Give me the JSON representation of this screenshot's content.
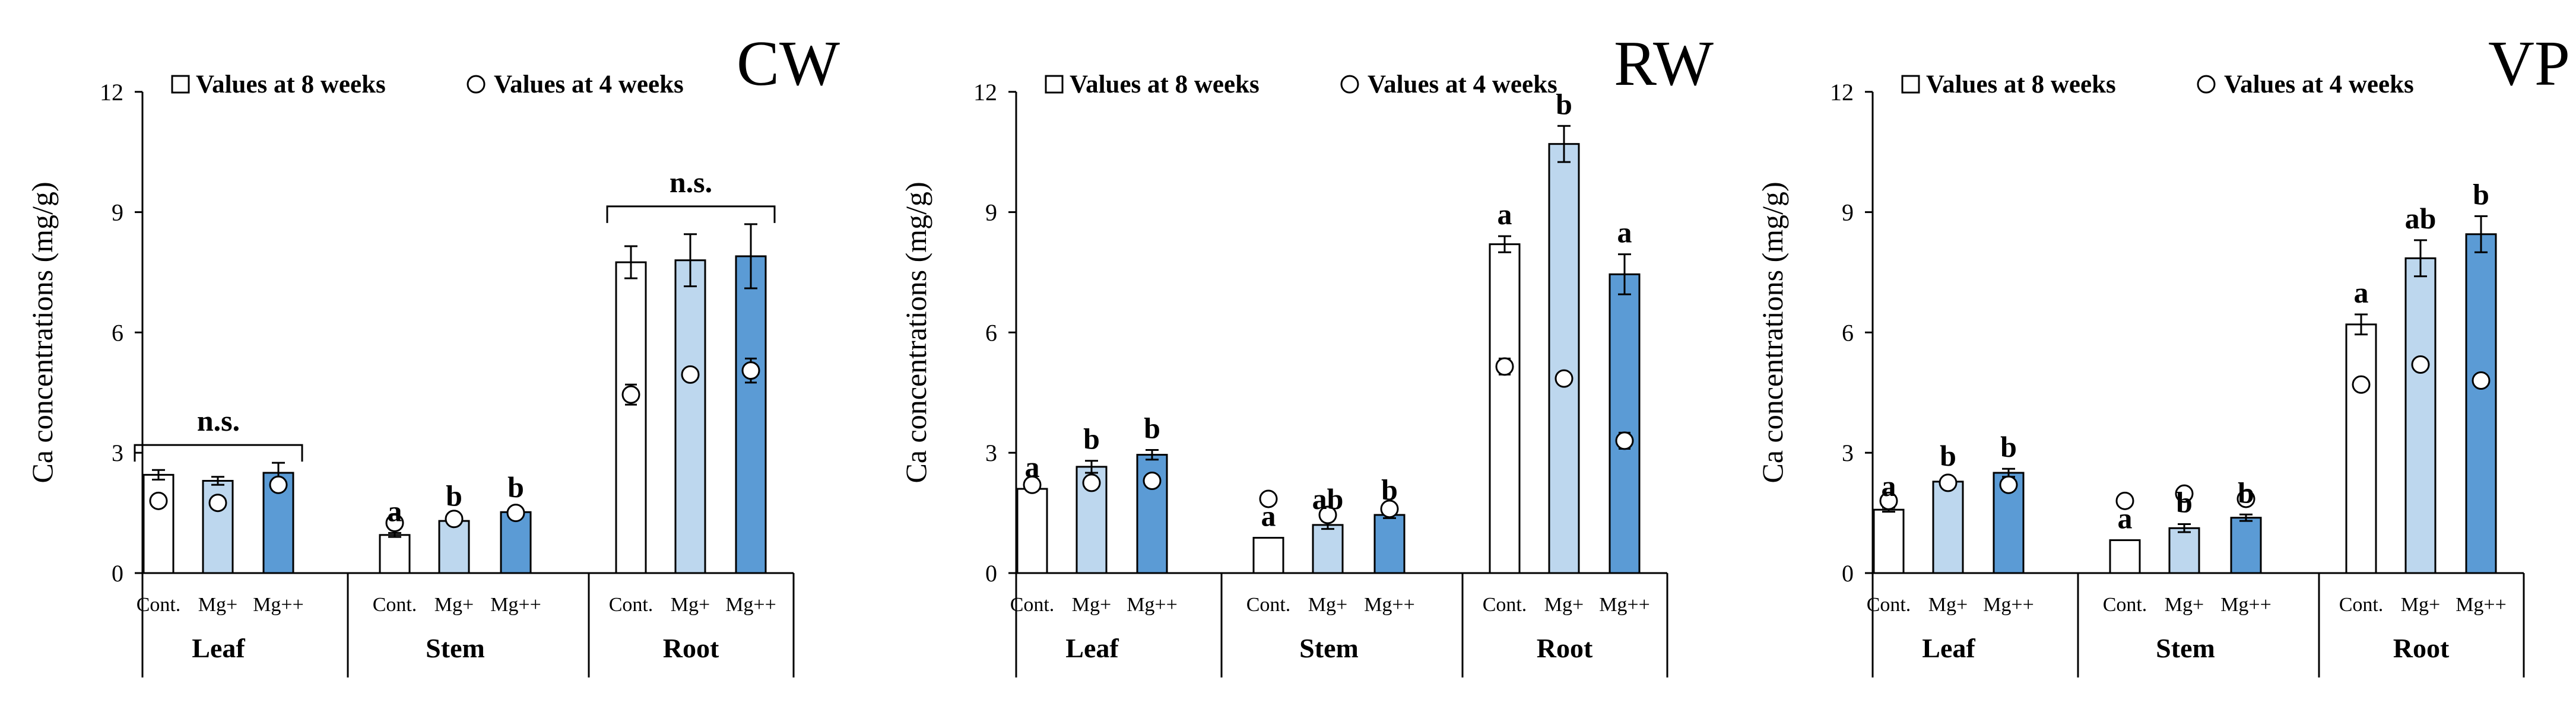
{
  "chart_data": [
    {
      "type": "bar",
      "panel_title": "CW",
      "ylabel": "Ca concentrations (mg/g)",
      "ylim": [
        0,
        12
      ],
      "yticks": [
        "0",
        "3",
        "6",
        "9",
        "12"
      ],
      "legend": {
        "bar": "Values at 8 weeks",
        "point": "Values at 4 weeks"
      },
      "treatments": [
        "Cont.",
        "Mg+",
        "Mg++"
      ],
      "groups": [
        {
          "name": "Leaf",
          "bars": [
            2.45,
            2.3,
            2.5
          ],
          "errors": [
            0.12,
            0.1,
            0.25
          ],
          "points": [
            1.8,
            1.75,
            2.2
          ],
          "point_errors": [
            0,
            0,
            0.15
          ],
          "letters": [],
          "bracket": "n.s."
        },
        {
          "name": "Stem",
          "bars": [
            0.95,
            1.3,
            1.52
          ],
          "errors": [
            0.05,
            0.08,
            0.08
          ],
          "points": [
            1.25,
            1.35,
            1.5
          ],
          "point_errors": [
            0,
            0.15,
            0.12
          ],
          "letters": [
            "a",
            "b",
            "b"
          ],
          "bracket": ""
        },
        {
          "name": "Root",
          "bars": [
            7.75,
            7.8,
            7.9
          ],
          "errors": [
            0.4,
            0.65,
            0.8
          ],
          "points": [
            4.45,
            4.95,
            5.05
          ],
          "point_errors": [
            0.25,
            0,
            0.3
          ],
          "letters": [],
          "bracket": "n.s."
        }
      ]
    },
    {
      "type": "bar",
      "panel_title": "RW",
      "ylabel": "Ca concentrations (mg/g)",
      "ylim": [
        0,
        12
      ],
      "yticks": [
        "0",
        "3",
        "6",
        "9",
        "12"
      ],
      "legend": {
        "bar": "Values at 8 weeks",
        "point": "Values at 4 weeks"
      },
      "treatments": [
        "Cont.",
        "Mg+",
        "Mg++"
      ],
      "groups": [
        {
          "name": "Leaf",
          "bars": [
            2.1,
            2.65,
            2.95
          ],
          "errors": [
            0,
            0.15,
            0.12
          ],
          "points": [
            2.2,
            2.25,
            2.3
          ],
          "point_errors": [
            0,
            0,
            0
          ],
          "letters": [
            "a",
            "b",
            "b"
          ],
          "bracket": ""
        },
        {
          "name": "Stem",
          "bars": [
            0.88,
            1.2,
            1.45
          ],
          "errors": [
            0,
            0.1,
            0.08
          ],
          "points": [
            1.85,
            1.45,
            1.6
          ],
          "point_errors": [
            0,
            0,
            0
          ],
          "letters": [
            "a",
            "ab",
            "b"
          ],
          "bracket": ""
        },
        {
          "name": "Root",
          "bars": [
            8.2,
            10.7,
            7.45
          ],
          "errors": [
            0.2,
            0.45,
            0.5
          ],
          "points": [
            5.15,
            4.85,
            3.3
          ],
          "point_errors": [
            0.2,
            0,
            0.2
          ],
          "letters": [
            "a",
            "b",
            "a"
          ],
          "bracket": ""
        }
      ]
    },
    {
      "type": "bar",
      "panel_title": "VP",
      "ylabel": "Ca concentrations (mg/g)",
      "ylim": [
        0,
        12
      ],
      "yticks": [
        "0",
        "3",
        "6",
        "9",
        "12"
      ],
      "legend": {
        "bar": "Values at 8 weeks",
        "point": "Values at 4 weeks"
      },
      "treatments": [
        "Cont.",
        "Mg+",
        "Mg++"
      ],
      "groups": [
        {
          "name": "Leaf",
          "bars": [
            1.58,
            2.28,
            2.5
          ],
          "errors": [
            0.05,
            0.1,
            0.1
          ],
          "points": [
            1.8,
            2.25,
            2.2
          ],
          "point_errors": [
            0,
            0,
            0
          ],
          "letters": [
            "a",
            "b",
            "b"
          ],
          "bracket": ""
        },
        {
          "name": "Stem",
          "bars": [
            0.82,
            1.12,
            1.38
          ],
          "errors": [
            0,
            0.1,
            0.08
          ],
          "points": [
            1.8,
            1.98,
            1.85
          ],
          "point_errors": [
            0,
            0,
            0
          ],
          "letters": [
            "a",
            "b",
            "b"
          ],
          "bracket": ""
        },
        {
          "name": "Root",
          "bars": [
            6.2,
            7.85,
            8.45
          ],
          "errors": [
            0.25,
            0.45,
            0.45
          ],
          "points": [
            4.7,
            5.2,
            4.8
          ],
          "point_errors": [
            0.15,
            0,
            0.15
          ],
          "letters": [
            "a",
            "ab",
            "b"
          ],
          "bracket": ""
        }
      ]
    }
  ],
  "colors": {
    "cont": "#ffffff",
    "mg1": "#bdd7ee",
    "mg2": "#5b9bd5",
    "stroke": "#000000"
  }
}
